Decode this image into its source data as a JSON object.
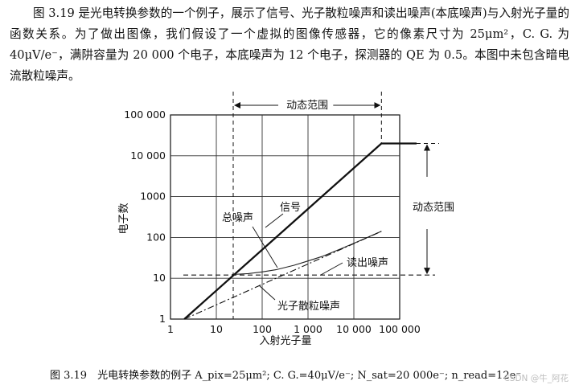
{
  "intro_text": "图 3.19 是光电转换参数的一个例子，展示了信号、光子散粒噪声和读出噪声(本底噪声)与入射光子量的函数关系。为了做出图像，我们假设了一个虚拟的图像传感器，它的像素尺寸为 25μm²，C. G. 为 40μV/e⁻，满阱容量为 20 000 个电子，本底噪声为 12 个电子，探测器的 QE 为 0.5。本图中未包含暗电流散粒噪声。",
  "chart_data": {
    "type": "line",
    "xlabel": "入射光子量",
    "ylabel": "电子数",
    "x_scale": "log",
    "y_scale": "log",
    "xlim": [
      1,
      100000
    ],
    "ylim": [
      1,
      100000
    ],
    "x_ticks": [
      "1",
      "10",
      "100",
      "1 000",
      "10 000",
      "100 000"
    ],
    "y_ticks": [
      "1",
      "10",
      "100",
      "1000",
      "10 000",
      "100 000"
    ],
    "series": [
      {
        "name": "信号",
        "style": "solid-thick",
        "x": [
          2,
          40000,
          100000
        ],
        "y": [
          1,
          20000,
          20000
        ]
      },
      {
        "name": "总噪声",
        "style": "solid-thin",
        "x": [
          22,
          50,
          100,
          200,
          500,
          1000,
          2000,
          5000,
          10000,
          20000,
          40000
        ],
        "y": [
          12.4,
          13,
          14.3,
          16.2,
          20.8,
          26.5,
          34,
          51.5,
          71.7,
          100.7,
          142
        ]
      },
      {
        "name": "读出噪声",
        "style": "dashed",
        "x": [
          1,
          100000
        ],
        "y": [
          12,
          12
        ]
      },
      {
        "name": "光子散粒噪声",
        "style": "dash-dot",
        "x": [
          2,
          40000
        ],
        "y": [
          1,
          141
        ]
      }
    ],
    "annotations": [
      {
        "text": "动态范围",
        "orientation": "horizontal"
      },
      {
        "text": "动态范围",
        "orientation": "vertical"
      }
    ]
  },
  "caption": {
    "prefix": "图 3.19　光电转换参数的例子",
    "formula": "A_pix=25μm²; C. G.=40μV/e⁻; N_sat=20 000e⁻; n_read=12e⁻"
  },
  "watermark": "CSDN @牛_阿花"
}
